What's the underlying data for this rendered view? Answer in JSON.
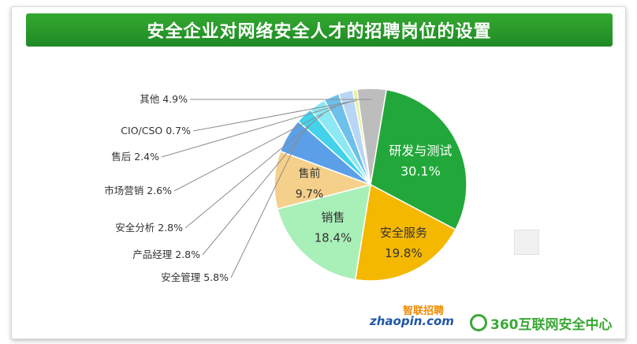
{
  "title": "安全企业对网络安全人才的招聘岗位的设置",
  "chart_data": {
    "type": "pie",
    "title": "安全企业对网络安全人才的招聘岗位的设置",
    "unit": "%",
    "slices": [
      {
        "label": "研发与测试",
        "value": 30.1,
        "display": "30.1%",
        "color": "#22a83a",
        "text_color": "#ffffff"
      },
      {
        "label": "安全服务",
        "value": 19.8,
        "display": "19.8%",
        "color": "#f5b800",
        "text_color": "#333333"
      },
      {
        "label": "销售",
        "value": 18.4,
        "display": "18.4%",
        "color": "#a8efb8",
        "text_color": "#333333"
      },
      {
        "label": "售前",
        "value": 9.7,
        "display": "9.7%",
        "color": "#f5d08a",
        "text_color": "#333333"
      },
      {
        "label": "安全管理",
        "value": 5.8,
        "display": "5.8%",
        "color": "#5b9fe8",
        "text_color": "#333333"
      },
      {
        "label": "产品经理",
        "value": 2.8,
        "display": "2.8%",
        "color": "#42d2ea",
        "text_color": "#333333"
      },
      {
        "label": "安全分析",
        "value": 2.8,
        "display": "2.8%",
        "color": "#8ce8f2",
        "text_color": "#333333"
      },
      {
        "label": "市场营销",
        "value": 2.6,
        "display": "2.6%",
        "color": "#6cc0ea",
        "text_color": "#333333"
      },
      {
        "label": "售后",
        "value": 2.4,
        "display": "2.4%",
        "color": "#b8d6f4",
        "text_color": "#333333"
      },
      {
        "label": "CIO/CSO",
        "value": 0.7,
        "display": "0.7%",
        "color": "#e8f09a",
        "text_color": "#333333"
      },
      {
        "label": "其他",
        "value": 4.9,
        "display": "4.9%",
        "color": "#bdbdbd",
        "text_color": "#333333"
      }
    ]
  },
  "logos": {
    "zhaopin_top": "智联招聘",
    "zhaopin_bottom": "zhaopin.com",
    "brand_360": "360互联网安全中心"
  },
  "colors": {
    "banner": "#2a9a2c",
    "brand_green": "#3aa835",
    "zhaopin_blue": "#1f56a8",
    "zhaopin_orange": "#f08a00"
  }
}
